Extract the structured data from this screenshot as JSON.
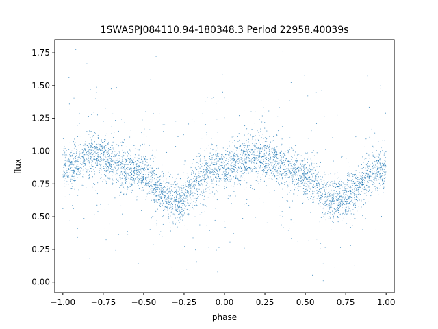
{
  "chart_data": {
    "type": "scatter",
    "title": "1SWASPJ084110.94-180348.3 Period 22958.40039s",
    "xlabel": "phase",
    "ylabel": "flux",
    "xlim": [
      -1.05,
      1.05
    ],
    "ylim": [
      -0.08,
      1.85
    ],
    "xticks": [
      -1.0,
      -0.75,
      -0.5,
      -0.25,
      0.0,
      0.25,
      0.5,
      0.75,
      1.0
    ],
    "xtick_labels": [
      "−1.00",
      "−0.75",
      "−0.50",
      "−0.25",
      "0.00",
      "0.25",
      "0.50",
      "0.75",
      "1.00"
    ],
    "yticks": [
      0.0,
      0.25,
      0.5,
      0.75,
      1.0,
      1.25,
      1.5,
      1.75
    ],
    "ytick_labels": [
      "0.00",
      "0.25",
      "0.50",
      "0.75",
      "1.00",
      "1.25",
      "1.50",
      "1.75"
    ],
    "grid": false,
    "point_color": "#1f77b4",
    "light_curve_trend": {
      "x": [
        -1.0,
        -0.8,
        -0.55,
        -0.3,
        -0.05,
        0.2,
        0.45,
        0.7,
        1.0
      ],
      "y": [
        0.88,
        0.96,
        0.85,
        0.62,
        0.87,
        0.96,
        0.83,
        0.62,
        0.88
      ]
    }
  }
}
